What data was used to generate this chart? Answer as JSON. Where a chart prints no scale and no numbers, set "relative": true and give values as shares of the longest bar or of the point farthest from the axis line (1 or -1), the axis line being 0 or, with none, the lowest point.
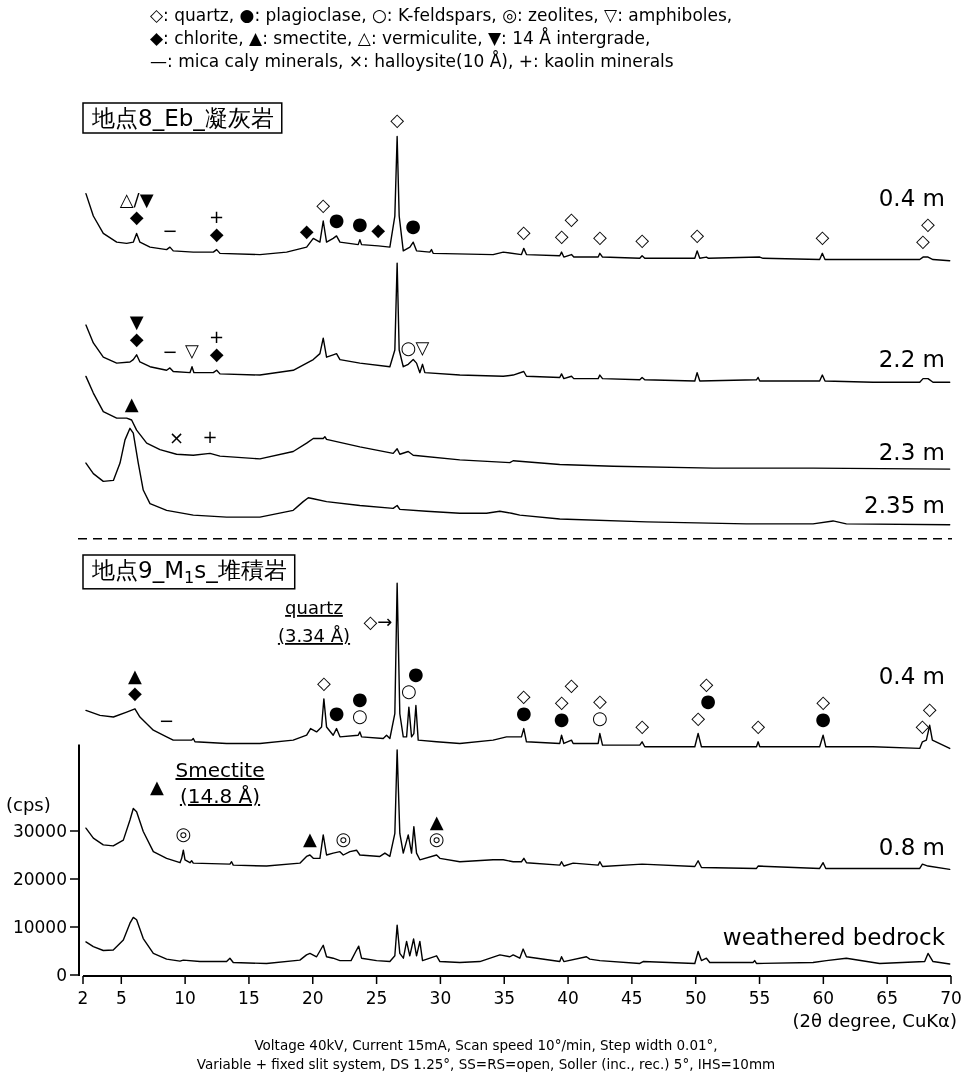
{
  "chart_data": [
    {
      "type": "line",
      "relative": true,
      "xlim": [
        2,
        70
      ],
      "series": [
        {
          "name": "0.4 m",
          "color": "#000000",
          "x": [
            2.23,
            2.81,
            3.59,
            4.64,
            5.42,
            5.94,
            6.2,
            6.46,
            7.25,
            8.55,
            8.81,
            9.07,
            10.64,
            12.21,
            12.47,
            12.73,
            15.86,
            17.95,
            19.52,
            20.04,
            20.56,
            20.82,
            21.08,
            21.6,
            21.86,
            22.13,
            23.56,
            23.69,
            23.82,
            25.13,
            26.04,
            26.43,
            26.61,
            26.77,
            27.09,
            27.61,
            27.87,
            28.13,
            29.17,
            29.3,
            29.43,
            34.13,
            34.92,
            36.35,
            36.53,
            36.74,
            39.35,
            39.49,
            39.67,
            40.27,
            40.45,
            42.36,
            42.49,
            42.7,
            45.62,
            45.8,
            46.01,
            49.93,
            50.11,
            50.32,
            50.84,
            51.0,
            55.02,
            55.28,
            59.71,
            59.92,
            60.13,
            63.89,
            67.55,
            67.81,
            68.2,
            68.59,
            69.9
          ],
          "values": [
            0.54,
            0.36,
            0.22,
            0.15,
            0.14,
            0.15,
            0.22,
            0.15,
            0.11,
            0.09,
            0.11,
            0.08,
            0.07,
            0.07,
            0.09,
            0.06,
            0.05,
            0.07,
            0.11,
            0.18,
            0.15,
            0.32,
            0.15,
            0.18,
            0.2,
            0.15,
            0.13,
            0.17,
            0.13,
            0.12,
            0.11,
            0.36,
            1,
            0.36,
            0.08,
            0.11,
            0.15,
            0.08,
            0.07,
            0.09,
            0.06,
            0.05,
            0.07,
            0.05,
            0.1,
            0.05,
            0.04,
            0.07,
            0.03,
            0.05,
            0.03,
            0.03,
            0.06,
            0.03,
            0.02,
            0.04,
            0.02,
            0.02,
            0.08,
            0.02,
            0.03,
            0.02,
            0.03,
            0.02,
            0.01,
            0.06,
            0.01,
            0.01,
            0.01,
            0.03,
            0.03,
            0.01,
            0
          ]
        }
      ],
      "annotations": [
        "◇: quartz, ●: plagioclase, ○: K-feldspars, ◎: zeolites, ▽: amphiboles,",
        "◆: chlorite, ▲: smectite, △: vermiculite, ▼: 14 Å intergrade,",
        "—: mica caly minerals, ×: halloysite(10 Å), +: kaolin minerals",
        "地点8_Eb_凝灰岩",
        {
          "text": "◆",
          "x": 6.2,
          "y": 0.22
        },
        {
          "text": "△/▼",
          "x": 6.2,
          "y": 0.22
        },
        {
          "text": "−",
          "x": 8.81,
          "y": 0.11
        },
        {
          "text": "◆",
          "x": 12.47,
          "y": 0.09
        },
        {
          "text": "+",
          "x": 12.47,
          "y": 0.09
        },
        {
          "text": "◆",
          "x": 19.52,
          "y": 0.11
        },
        {
          "text": "◇",
          "x": 20.82,
          "y": 0.32
        },
        {
          "text": "●",
          "x": 21.86,
          "y": 0.2
        },
        {
          "text": "●",
          "x": 23.69,
          "y": 0.17
        },
        {
          "text": "◆",
          "x": 25.13,
          "y": 0.12
        },
        {
          "text": "◇",
          "x": 26.61,
          "y": 1
        },
        {
          "text": "●",
          "x": 27.87,
          "y": 0.15
        },
        {
          "text": "◇",
          "x": 36.53,
          "y": 0.1
        },
        {
          "text": "◇",
          "x": 39.49,
          "y": 0.07
        },
        {
          "text": "◇",
          "x": 40.27,
          "y": 0.05
        },
        {
          "text": "◇",
          "x": 42.49,
          "y": 0.06
        },
        {
          "text": "◇",
          "x": 45.8,
          "y": 0.04
        },
        {
          "text": "◇",
          "x": 50.11,
          "y": 0.08
        },
        {
          "text": "◇",
          "x": 59.92,
          "y": 0.06
        },
        {
          "text": "◇",
          "x": 67.81,
          "y": 0.03
        },
        {
          "text": "◇",
          "x": 68.2,
          "y": 0.03
        }
      ]
    },
    {
      "type": "line",
      "relative": true,
      "xlim": [
        2,
        70
      ],
      "series": [
        {
          "name": "2.2 m",
          "color": "#000000",
          "x": [
            2.23,
            2.81,
            3.59,
            4.64,
            5.68,
            5.94,
            6.2,
            6.46,
            7.25,
            8.55,
            8.81,
            9.07,
            10.38,
            10.54,
            10.69,
            12.21,
            12.47,
            12.73,
            15.86,
            18.47,
            20.04,
            20.56,
            20.82,
            21.08,
            21.6,
            21.86,
            22.13,
            23.69,
            26.04,
            26.43,
            26.61,
            26.77,
            27.09,
            27.48,
            27.87,
            28.13,
            28.39,
            28.6,
            28.78,
            31.52,
            34.92,
            35.7,
            36.53,
            36.74,
            39.35,
            39.49,
            39.67,
            40.27,
            40.45,
            42.36,
            42.49,
            42.7,
            45.62,
            45.8,
            46.01,
            49.93,
            50.11,
            50.32,
            54.76,
            54.89,
            55.02,
            59.71,
            59.92,
            60.13,
            63.89,
            67.55,
            67.81,
            68.2,
            68.59,
            69.9
          ],
          "values": [
            0.48,
            0.33,
            0.21,
            0.16,
            0.17,
            0.19,
            0.23,
            0.17,
            0.13,
            0.1,
            0.12,
            0.09,
            0.08,
            0.13,
            0.08,
            0.08,
            0.1,
            0.07,
            0.06,
            0.1,
            0.19,
            0.24,
            0.37,
            0.21,
            0.23,
            0.24,
            0.19,
            0.16,
            0.13,
            0.27,
            1,
            0.27,
            0.13,
            0.15,
            0.19,
            0.16,
            0.08,
            0.15,
            0.08,
            0.06,
            0.05,
            0.06,
            0.09,
            0.05,
            0.04,
            0.07,
            0.03,
            0.05,
            0.03,
            0.03,
            0.06,
            0.03,
            0.02,
            0.04,
            0.02,
            0.01,
            0.08,
            0.01,
            0.02,
            0.04,
            0.01,
            0.01,
            0.06,
            0.01,
            0,
            0,
            0.03,
            0.03,
            0,
            0
          ]
        }
      ],
      "annotations": [
        {
          "text": "◆",
          "x": 6.2,
          "y": 0.23
        },
        {
          "text": "▼",
          "x": 6.2,
          "y": 0.23
        },
        {
          "text": "−",
          "x": 8.81,
          "y": 0.12
        },
        {
          "text": "▽",
          "x": 10.54,
          "y": 0.13
        },
        {
          "text": "◆",
          "x": 12.47,
          "y": 0.1
        },
        {
          "text": "+",
          "x": 12.47,
          "y": 0.1
        },
        {
          "text": "○",
          "x": 27.48,
          "y": 0.15
        },
        {
          "text": "▽",
          "x": 28.6,
          "y": 0.15
        }
      ]
    },
    {
      "type": "line",
      "relative": true,
      "xlim": [
        2,
        70
      ],
      "series": [
        {
          "name": "2.3 m",
          "color": "#000000",
          "x": [
            2.23,
            2.81,
            3.59,
            4.64,
            5.42,
            5.81,
            6.2,
            6.99,
            8.03,
            9.33,
            10.64,
            11.95,
            12.73,
            15.86,
            18.47,
            19.52,
            20.04,
            20.82,
            20.95,
            21.08,
            23.69,
            26.3,
            26.61,
            26.82,
            27.48,
            27.87,
            31.52,
            35.44,
            35.7,
            39.35,
            43.53,
            51.36,
            59.19,
            69.9
          ],
          "values": [
            1,
            0.82,
            0.62,
            0.55,
            0.55,
            0.53,
            0.42,
            0.28,
            0.21,
            0.16,
            0.15,
            0.17,
            0.14,
            0.11,
            0.19,
            0.28,
            0.33,
            0.33,
            0.35,
            0.32,
            0.24,
            0.17,
            0.22,
            0.16,
            0.19,
            0.15,
            0.1,
            0.07,
            0.09,
            0.05,
            0.03,
            0.01,
            0.01,
            0
          ]
        }
      ],
      "annotations": [
        {
          "text": "▲",
          "x": 5.81,
          "y": 0.53
        },
        {
          "text": "×",
          "x": 9.33,
          "y": 0.16
        },
        {
          "text": "+",
          "x": 11.95,
          "y": 0.17
        }
      ]
    },
    {
      "type": "line",
      "relative": true,
      "xlim": [
        2,
        70
      ],
      "series": [
        {
          "name": "2.35 m",
          "color": "#000000",
          "x": [
            2.23,
            2.81,
            3.59,
            4.38,
            4.9,
            5.29,
            5.68,
            5.94,
            6.33,
            6.72,
            7.25,
            8.55,
            10.64,
            13.25,
            15.86,
            18.47,
            19.25,
            19.65,
            20.04,
            21.08,
            23.69,
            26.3,
            26.61,
            26.82,
            28.91,
            31.52,
            33.61,
            34.65,
            35.57,
            36.22,
            39.35,
            46.14,
            53.97,
            59.19,
            60.76,
            61.8,
            69.9
          ],
          "values": [
            0.64,
            0.53,
            0.45,
            0.46,
            0.64,
            0.88,
            1,
            0.95,
            0.64,
            0.36,
            0.22,
            0.15,
            0.1,
            0.08,
            0.08,
            0.15,
            0.24,
            0.28,
            0.27,
            0.24,
            0.2,
            0.17,
            0.2,
            0.16,
            0.14,
            0.12,
            0.12,
            0.14,
            0.12,
            0.1,
            0.06,
            0.03,
            0.01,
            0.01,
            0.04,
            0.01,
            0
          ]
        }
      ]
    },
    {
      "type": "line",
      "relative": true,
      "xlim": [
        2,
        70
      ],
      "ref_lines": [
        {
          "axis": "y",
          "value": 1.27,
          "color": "#000000",
          "line_style": "dashed"
        }
      ],
      "series": [
        {
          "name": "0.4 m",
          "color": "#000000",
          "x": [
            2.23,
            3.33,
            4.38,
            5.42,
            6.07,
            6.46,
            7.51,
            8.55,
            9.07,
            10.51,
            10.64,
            10.77,
            13.25,
            15.86,
            18.47,
            19.52,
            19.83,
            20.3,
            20.69,
            20.87,
            21.08,
            21.6,
            21.86,
            22.13,
            23.56,
            23.69,
            23.82,
            25.52,
            25.78,
            26.04,
            26.43,
            26.61,
            26.82,
            27.09,
            27.35,
            27.53,
            27.74,
            27.92,
            28.08,
            28.26,
            29.7,
            31.52,
            34.13,
            35.18,
            36.35,
            36.53,
            36.74,
            39.35,
            39.49,
            39.67,
            40.27,
            40.4,
            42.36,
            42.49,
            42.7,
            45.62,
            45.8,
            46.01,
            49.93,
            50.19,
            50.45,
            54.76,
            54.89,
            55.02,
            59.71,
            59.98,
            60.19,
            63.89,
            67.55,
            67.76,
            68.07,
            68.33,
            68.54,
            69.9
          ],
          "values": [
            0.23,
            0.2,
            0.19,
            0.22,
            0.24,
            0.19,
            0.11,
            0.07,
            0.05,
            0.05,
            0.06,
            0.04,
            0.03,
            0.03,
            0.05,
            0.08,
            0.12,
            0.1,
            0.13,
            0.3,
            0.13,
            0.08,
            0.12,
            0.07,
            0.08,
            0.1,
            0.07,
            0.06,
            0.08,
            0.06,
            0.21,
            1,
            0.21,
            0.07,
            0.07,
            0.25,
            0.07,
            0.09,
            0.26,
            0.05,
            0.04,
            0.03,
            0.05,
            0.07,
            0.07,
            0.12,
            0.04,
            0.03,
            0.08,
            0.03,
            0.05,
            0.03,
            0.03,
            0.09,
            0.02,
            0.02,
            0.04,
            0.01,
            0.01,
            0.09,
            0.01,
            0.01,
            0.04,
            0.01,
            0.01,
            0.08,
            0.01,
            0.01,
            0,
            0.04,
            0.05,
            0.14,
            0.05,
            0
          ]
        }
      ],
      "annotations": [
        "地点9_M$_{1}$s_堆積岩",
        "◇→",
        "quartz\n(3.34 Å)",
        {
          "text": "◆",
          "x": 6.07,
          "y": 0.24
        },
        {
          "text": "▲",
          "x": 6.07,
          "y": 0.24
        },
        {
          "text": "−",
          "x": 8.55,
          "y": 0.07
        },
        {
          "text": "◇",
          "x": 20.87,
          "y": 0.3
        },
        {
          "text": "●",
          "x": 21.86,
          "y": 0.12
        },
        {
          "text": "○",
          "x": 23.69,
          "y": 0.1
        },
        {
          "text": "●",
          "x": 23.69,
          "y": 0.1
        },
        {
          "text": "○",
          "x": 27.53,
          "y": 0.25
        },
        {
          "text": "●",
          "x": 28.08,
          "y": 0.26
        },
        {
          "text": "●",
          "x": 36.53,
          "y": 0.12
        },
        {
          "text": "◇",
          "x": 36.53,
          "y": 0.12
        },
        {
          "text": "●",
          "x": 39.49,
          "y": 0.08
        },
        {
          "text": "◇",
          "x": 39.49,
          "y": 0.08
        },
        {
          "text": "◇",
          "x": 40.27,
          "y": 0.05
        },
        {
          "text": "○",
          "x": 42.49,
          "y": 0.09
        },
        {
          "text": "◇",
          "x": 42.49,
          "y": 0.09
        },
        {
          "text": "◇",
          "x": 45.8,
          "y": 0.04
        },
        {
          "text": "◇",
          "x": 50.19,
          "y": 0.09
        },
        {
          "text": "●",
          "x": 50.97,
          "y": 0.01
        },
        {
          "text": "◇",
          "x": 50.84,
          "y": 0.01
        },
        {
          "text": "◇",
          "x": 54.89,
          "y": 0.04
        },
        {
          "text": "●",
          "x": 59.98,
          "y": 0.08
        },
        {
          "text": "◇",
          "x": 59.98,
          "y": 0.08
        },
        {
          "text": "◇",
          "x": 67.76,
          "y": 0.04
        },
        {
          "text": "◇",
          "x": 68.33,
          "y": 0.14
        }
      ]
    },
    {
      "type": "line",
      "xlabel": "(2θ degree, CuKα)",
      "ylabel": "(cps)",
      "xlim": [
        2,
        70
      ],
      "xticks": [
        2,
        5,
        10,
        15,
        20,
        25,
        30,
        35,
        40,
        45,
        50,
        55,
        60,
        65,
        70
      ],
      "ylim": [
        0,
        48000
      ],
      "yticks": [
        0,
        10000,
        20000,
        30000
      ],
      "series": [
        {
          "name": "0.8 m",
          "color": "#000000",
          "x": [
            2.23,
            2.81,
            3.59,
            4.37,
            5.16,
            5.68,
            5.94,
            6.2,
            6.72,
            7.51,
            8.55,
            9.6,
            9.73,
            9.86,
            9.99,
            10.38,
            10.51,
            10.64,
            13.51,
            13.64,
            13.77,
            16.38,
            18.99,
            19.51,
            19.78,
            20.04,
            20.56,
            20.82,
            21.08,
            21.6,
            22.13,
            22.39,
            22.91,
            23.43,
            23.69,
            25.26,
            25.65,
            26.04,
            26.43,
            26.61,
            26.82,
            27.09,
            27.48,
            27.74,
            27.92,
            28.13,
            28.39,
            29.7,
            29.96,
            31.52,
            34.13,
            34.92,
            35.7,
            36.35,
            36.54,
            36.74,
            39.35,
            39.49,
            39.67,
            40.4,
            42.36,
            42.49,
            42.7,
            45.8,
            49.93,
            50.19,
            50.45,
            54.76,
            54.89,
            59.71,
            59.98,
            60.19,
            63.89,
            67.55,
            67.76,
            68.2,
            69.9
          ],
          "values": [
            30600,
            28500,
            27100,
            26900,
            28100,
            32300,
            34700,
            34000,
            29900,
            25700,
            24300,
            23400,
            24300,
            26000,
            24000,
            23400,
            23800,
            23300,
            23100,
            23600,
            22900,
            22700,
            23300,
            24700,
            25000,
            24300,
            24300,
            29200,
            25000,
            25400,
            25700,
            25000,
            25700,
            26000,
            25000,
            24700,
            25400,
            24700,
            29500,
            46900,
            29500,
            25400,
            29200,
            25400,
            30900,
            25400,
            24000,
            25000,
            24300,
            23600,
            24000,
            24000,
            23600,
            23600,
            24300,
            23400,
            22900,
            23600,
            22700,
            23300,
            22900,
            23600,
            22600,
            23100,
            22600,
            23800,
            22400,
            22200,
            22700,
            22200,
            23400,
            22200,
            22200,
            22200,
            23100,
            22700,
            22000
          ]
        },
        {
          "name": "weathered bedrock",
          "color": "#000000",
          "x": [
            2.23,
            2.81,
            3.59,
            4.37,
            5.16,
            5.68,
            5.94,
            6.2,
            6.72,
            7.51,
            8.55,
            9.6,
            9.86,
            11.16,
            13.25,
            13.51,
            13.77,
            16.38,
            18.99,
            19.51,
            19.78,
            20.3,
            20.82,
            21.08,
            21.6,
            22.13,
            23.0,
            23.43,
            23.6,
            23.82,
            25.0,
            26.04,
            26.43,
            26.61,
            26.82,
            27.1,
            27.35,
            27.6,
            27.9,
            28.13,
            28.39,
            28.6,
            29.7,
            29.96,
            31.52,
            33.09,
            34.66,
            35.44,
            35.7,
            36.22,
            36.48,
            36.74,
            39.35,
            39.49,
            39.67,
            41.44,
            41.7,
            42.49,
            45.62,
            45.88,
            49.93,
            50.19,
            50.45,
            50.84,
            51.1,
            54.49,
            54.62,
            54.76,
            59.19,
            60.24,
            61.8,
            64.41,
            67.94,
            68.2,
            68.59,
            69.9
          ],
          "values": [
            6900,
            5900,
            5100,
            5200,
            7300,
            10800,
            12000,
            11500,
            7600,
            4500,
            3300,
            2900,
            3100,
            2800,
            2800,
            3500,
            2600,
            2400,
            3100,
            4200,
            4500,
            3800,
            6200,
            3800,
            3500,
            3000,
            3000,
            5200,
            6000,
            3500,
            3000,
            2800,
            4000,
            10400,
            4500,
            3500,
            7000,
            4000,
            7500,
            4000,
            7000,
            3000,
            4000,
            2800,
            2600,
            2800,
            4200,
            3800,
            4200,
            3500,
            5400,
            3800,
            2800,
            3800,
            2800,
            3800,
            3300,
            3000,
            2400,
            2800,
            2400,
            4900,
            3000,
            3500,
            2600,
            2600,
            3000,
            2400,
            2600,
            3000,
            3500,
            2400,
            2800,
            4500,
            2800,
            2300
          ]
        }
      ],
      "annotations": [
        "▲",
        "Smectite\n(14.8 Å)",
        "Voltage 40kV, Current 15mA, Scan speed 10°/min, Step width 0.01°,",
        "Variable + fixed slit system, DS 1.25°, SS=RS=open, Soller (inc., rec.) 5°, IHS=10mm",
        {
          "text": "◎",
          "x": 9.86,
          "y": 26000
        },
        {
          "text": "▲",
          "x": 19.78,
          "y": 25000
        },
        {
          "text": "◎",
          "x": 22.39,
          "y": 25000
        },
        {
          "text": "◎",
          "x": 29.7,
          "y": 25000
        },
        {
          "text": "▲",
          "x": 29.7,
          "y": 25000
        }
      ]
    }
  ]
}
